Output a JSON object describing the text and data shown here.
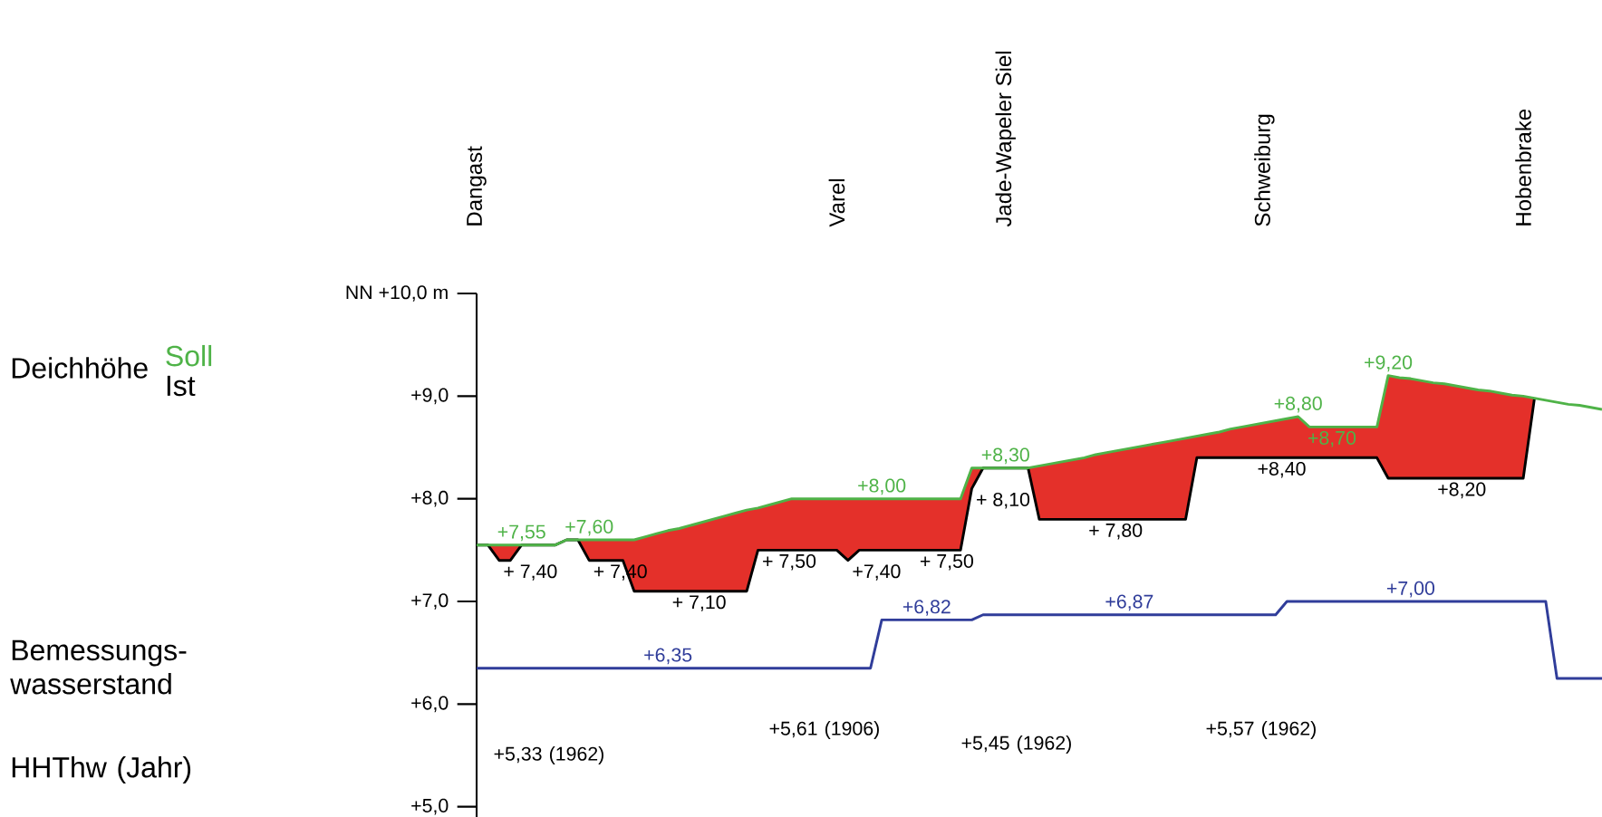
{
  "chart_data": {
    "type": "line",
    "categories": [
      "Dangast",
      null,
      null,
      null,
      null,
      null,
      null,
      null,
      null,
      null,
      null,
      null,
      null,
      null,
      null,
      null,
      null,
      null,
      null,
      null,
      null,
      null,
      null,
      null,
      null,
      null,
      null,
      null,
      null,
      null,
      null,
      null,
      "Varel",
      null,
      null,
      null,
      null,
      null,
      null,
      null,
      null,
      null,
      null,
      null,
      null,
      null,
      null,
      "Jade-Wapeler Siel",
      null,
      null,
      null,
      null,
      null,
      null,
      null,
      null,
      null,
      null,
      null,
      null,
      null,
      null,
      null,
      null,
      null,
      null,
      null,
      null,
      null,
      null,
      "Schweiburg",
      null,
      null,
      null,
      null,
      null,
      null,
      null,
      null,
      null,
      null,
      null,
      null,
      null,
      null,
      null,
      null,
      null,
      null,
      null,
      null,
      null,
      null,
      "Hobenbrake",
      null,
      null,
      null,
      null,
      null,
      null,
      null
    ],
    "series": [
      {
        "name": "Soll",
        "color": "#4fb348",
        "upper": [
          7.55,
          7.55,
          7.55,
          7.55,
          7.55,
          7.55,
          7.55,
          7.55,
          7.6,
          7.6,
          7.6,
          7.6,
          7.6,
          7.6,
          7.6,
          7.63,
          7.66,
          7.69,
          7.71,
          7.74,
          7.77,
          7.8,
          7.83,
          7.86,
          7.89,
          7.91,
          7.94,
          7.97,
          8.0,
          8.0,
          8.0,
          8.0,
          8.0,
          8.0,
          8.0,
          8.0,
          8.0,
          8.0,
          8.0,
          8.0,
          8.0,
          8.0,
          8.0,
          8.0,
          8.3,
          8.3,
          8.3,
          8.3,
          8.3,
          8.3,
          8.32,
          8.34,
          8.36,
          8.38,
          8.4,
          8.43,
          8.45,
          8.47,
          8.49,
          8.51,
          8.53,
          8.55,
          8.57,
          8.59,
          8.61,
          8.63,
          8.65,
          8.68,
          8.7,
          8.72,
          8.74,
          8.76,
          8.78,
          8.8,
          8.7,
          8.7,
          8.7,
          8.7,
          8.7,
          8.7,
          8.7,
          9.2,
          9.18,
          9.17,
          9.15,
          9.13,
          9.12,
          9.1,
          9.08,
          9.06,
          9.05,
          9.03,
          9.01,
          9.0,
          8.98,
          null,
          null,
          null,
          null,
          null,
          null
        ],
        "lower": [
          7.55,
          7.55,
          7.4,
          7.4,
          7.55,
          7.55,
          7.55,
          7.55,
          7.6,
          7.6,
          7.4,
          7.4,
          7.4,
          7.4,
          7.1,
          7.1,
          7.1,
          7.1,
          7.1,
          7.1,
          7.1,
          7.1,
          7.1,
          7.1,
          7.1,
          7.5,
          7.5,
          7.5,
          7.5,
          7.5,
          7.5,
          7.5,
          7.5,
          7.4,
          7.5,
          7.5,
          7.5,
          7.5,
          7.5,
          7.5,
          7.5,
          7.5,
          7.5,
          7.5,
          8.1,
          8.3,
          8.3,
          8.3,
          8.3,
          8.3,
          7.8,
          7.8,
          7.8,
          7.8,
          7.8,
          7.8,
          7.8,
          7.8,
          7.8,
          7.8,
          7.8,
          7.8,
          7.8,
          7.8,
          8.4,
          8.4,
          8.4,
          8.4,
          8.4,
          8.4,
          8.4,
          8.4,
          8.4,
          8.4,
          8.4,
          8.4,
          8.4,
          8.4,
          8.4,
          8.4,
          8.4,
          8.2,
          8.2,
          8.2,
          8.2,
          8.2,
          8.2,
          8.2,
          8.2,
          8.2,
          8.2,
          8.2,
          8.2,
          8.2,
          8.98,
          null,
          null,
          null,
          null,
          null,
          null
        ],
        "values": [
          7.55,
          7.55,
          7.55,
          7.55,
          7.55,
          7.55,
          7.55,
          7.55,
          7.6,
          7.6,
          7.6,
          7.6,
          7.6,
          7.6,
          7.6,
          7.63,
          7.66,
          7.69,
          7.71,
          7.74,
          7.77,
          7.8,
          7.83,
          7.86,
          7.89,
          7.91,
          7.94,
          7.97,
          8.0,
          8.0,
          8.0,
          8.0,
          8.0,
          8.0,
          8.0,
          8.0,
          8.0,
          8.0,
          8.0,
          8.0,
          8.0,
          8.0,
          8.0,
          8.0,
          8.3,
          8.3,
          8.3,
          8.3,
          8.3,
          8.3,
          8.32,
          8.34,
          8.36,
          8.38,
          8.4,
          8.43,
          8.45,
          8.47,
          8.49,
          8.51,
          8.53,
          8.55,
          8.57,
          8.59,
          8.61,
          8.63,
          8.65,
          8.68,
          8.7,
          8.72,
          8.74,
          8.76,
          8.78,
          8.8,
          8.7,
          8.7,
          8.7,
          8.7,
          8.7,
          8.7,
          8.7,
          9.2,
          9.18,
          9.17,
          9.15,
          9.13,
          9.12,
          9.1,
          9.08,
          9.06,
          9.05,
          9.03,
          9.01,
          9.0,
          8.98,
          8.96,
          8.94,
          8.92,
          8.91,
          8.89,
          8.87
        ],
        "value_labels": [
          null,
          null,
          null,
          null,
          "+7,55",
          null,
          null,
          null,
          null,
          null,
          "+7,60",
          null,
          null,
          null,
          null,
          null,
          null,
          null,
          null,
          null,
          null,
          null,
          null,
          null,
          null,
          null,
          null,
          null,
          null,
          null,
          null,
          null,
          null,
          null,
          null,
          null,
          "+8,00",
          null,
          null,
          null,
          null,
          null,
          null,
          null,
          null,
          null,
          null,
          "+8,30",
          null,
          null,
          null,
          null,
          null,
          null,
          null,
          null,
          null,
          null,
          null,
          null,
          null,
          null,
          null,
          null,
          null,
          null,
          null,
          null,
          null,
          null,
          null,
          null,
          null,
          "+8,80",
          null,
          null,
          "+8,70",
          null,
          null,
          null,
          null,
          "+9,20",
          null,
          null,
          null,
          null,
          null,
          null,
          null,
          null,
          null,
          null,
          null,
          null,
          null,
          null,
          null,
          null,
          null,
          null,
          null
        ]
      },
      {
        "name": "Ist",
        "color": "#000000",
        "values": [
          7.55,
          7.55,
          7.4,
          7.4,
          7.55,
          7.55,
          7.55,
          7.55,
          7.6,
          7.6,
          7.4,
          7.4,
          7.4,
          7.4,
          7.1,
          7.1,
          7.1,
          7.1,
          7.1,
          7.1,
          7.1,
          7.1,
          7.1,
          7.1,
          7.1,
          7.5,
          7.5,
          7.5,
          7.5,
          7.5,
          7.5,
          7.5,
          7.5,
          7.4,
          7.5,
          7.5,
          7.5,
          7.5,
          7.5,
          7.5,
          7.5,
          7.5,
          7.5,
          7.5,
          8.1,
          8.3,
          8.3,
          8.3,
          8.3,
          8.3,
          7.8,
          7.8,
          7.8,
          7.8,
          7.8,
          7.8,
          7.8,
          7.8,
          7.8,
          7.8,
          7.8,
          7.8,
          7.8,
          7.8,
          8.4,
          8.4,
          8.4,
          8.4,
          8.4,
          8.4,
          8.4,
          8.4,
          8.4,
          8.4,
          8.4,
          8.4,
          8.4,
          8.4,
          8.4,
          8.4,
          8.4,
          8.2,
          8.2,
          8.2,
          8.2,
          8.2,
          8.2,
          8.2,
          8.2,
          8.2,
          8.2,
          8.2,
          8.2,
          8.2,
          8.98,
          null,
          null,
          null,
          null,
          null,
          null
        ],
        "value_labels": [
          null,
          null,
          "+ 7,40",
          null,
          null,
          null,
          null,
          null,
          null,
          null,
          "+ 7,40",
          null,
          null,
          null,
          null,
          null,
          null,
          "+ 7,10",
          null,
          null,
          null,
          null,
          null,
          null,
          null,
          "+ 7,50",
          null,
          null,
          null,
          null,
          null,
          null,
          null,
          "+7,40",
          null,
          null,
          null,
          null,
          null,
          "+ 7,50",
          null,
          null,
          null,
          null,
          "+ 8,10",
          null,
          null,
          null,
          null,
          null,
          null,
          null,
          null,
          null,
          "+ 7,80",
          null,
          null,
          null,
          null,
          null,
          null,
          null,
          null,
          null,
          null,
          null,
          null,
          null,
          null,
          "+8,40",
          null,
          null,
          null,
          null,
          null,
          null,
          null,
          null,
          null,
          null,
          null,
          null,
          null,
          null,
          null,
          "+8,20",
          null,
          null,
          null,
          null,
          null,
          null,
          null,
          null,
          null,
          null,
          null,
          null,
          null,
          null,
          null
        ]
      },
      {
        "color": "#303d9a",
        "values": [
          6.35,
          6.35,
          6.35,
          6.35,
          6.35,
          6.35,
          6.35,
          6.35,
          6.35,
          6.35,
          6.35,
          6.35,
          6.35,
          6.35,
          6.35,
          6.35,
          6.35,
          6.35,
          6.35,
          6.35,
          6.35,
          6.35,
          6.35,
          6.35,
          6.35,
          6.35,
          6.35,
          6.35,
          6.35,
          6.35,
          6.35,
          6.35,
          6.35,
          6.35,
          6.35,
          6.35,
          6.82,
          6.82,
          6.82,
          6.82,
          6.82,
          6.82,
          6.82,
          6.82,
          6.82,
          6.87,
          6.87,
          6.87,
          6.87,
          6.87,
          6.87,
          6.87,
          6.87,
          6.87,
          6.87,
          6.87,
          6.87,
          6.87,
          6.87,
          6.87,
          6.87,
          6.87,
          6.87,
          6.87,
          6.87,
          6.87,
          6.87,
          6.87,
          6.87,
          6.87,
          6.87,
          6.87,
          7.0,
          7.0,
          7.0,
          7.0,
          7.0,
          7.0,
          7.0,
          7.0,
          7.0,
          7.0,
          7.0,
          7.0,
          7.0,
          7.0,
          7.0,
          7.0,
          7.0,
          7.0,
          7.0,
          7.0,
          7.0,
          7.0,
          7.0,
          7.0,
          6.25,
          6.25,
          6.25,
          6.25,
          6.25
        ],
        "value_labels": [
          null,
          null,
          null,
          null,
          null,
          null,
          null,
          null,
          null,
          null,
          null,
          null,
          null,
          null,
          null,
          null,
          null,
          "+6,35",
          null,
          null,
          null,
          null,
          null,
          null,
          null,
          null,
          null,
          null,
          null,
          null,
          null,
          null,
          null,
          null,
          null,
          null,
          null,
          null,
          null,
          null,
          "+6,82",
          null,
          null,
          null,
          null,
          null,
          null,
          null,
          null,
          null,
          null,
          null,
          null,
          null,
          null,
          null,
          null,
          null,
          "+6,87",
          null,
          null,
          null,
          null,
          null,
          null,
          null,
          null,
          null,
          null,
          null,
          null,
          null,
          null,
          null,
          null,
          null,
          null,
          null,
          null,
          null,
          null,
          null,
          null,
          "+7,00",
          null,
          null,
          null,
          null,
          null,
          null,
          null,
          null,
          null,
          null,
          null,
          null,
          null,
          null,
          null,
          null,
          null
        ]
      }
    ],
    "ylim": [
      4.9,
      10
    ],
    "yticks": [
      {
        "value": 5,
        "label": "+5,0"
      },
      {
        "value": 6,
        "label": "+6,0"
      },
      {
        "value": 7,
        "label": "+7,0"
      },
      {
        "value": 8,
        "label": "+8,0"
      },
      {
        "value": 9,
        "label": "+9,0"
      },
      {
        "value": 10,
        "label": "NN +10,0 m"
      }
    ],
    "marker": "none",
    "line_style": "solid",
    "annotations": [
      "Deichhöhe",
      "Bemessungs- wasserstand",
      "HHThw (Jahr)",
      "+5,33 (1962)",
      "+5,61 (1906)",
      "+5,45 (1962)",
      "+5,57 (1962)"
    ]
  }
}
